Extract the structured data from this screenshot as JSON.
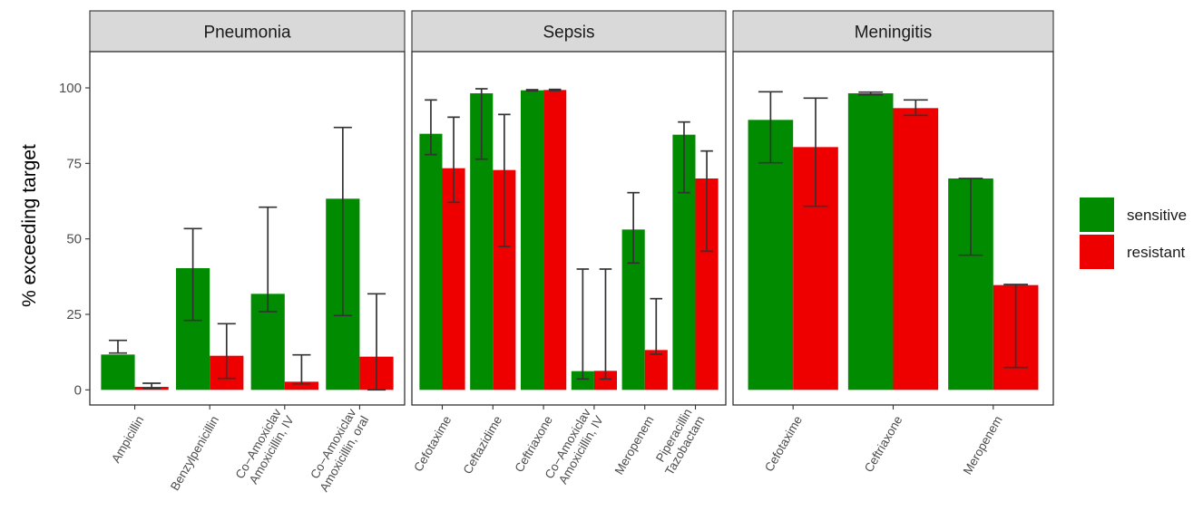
{
  "chart_data": {
    "type": "bar",
    "ylabel": "% exceeding target",
    "ylim": [
      -5,
      112
    ],
    "yticks": [
      0,
      25,
      50,
      75,
      100
    ],
    "legend": {
      "position": "right",
      "entries": [
        {
          "key": "sensitive",
          "label": "sensitive",
          "color": "#008B00"
        },
        {
          "key": "resistant",
          "label": "resistant",
          "color": "#EE0000"
        }
      ]
    },
    "panels": [
      {
        "title": "Pneumonia",
        "categories": [
          {
            "label": [
              "Ampicillin"
            ],
            "sensitive": {
              "value": 11.7,
              "lo": 12.2,
              "hi": 16.4
            },
            "resistant": {
              "value": 1.0,
              "lo": 0.5,
              "hi": 2.2
            }
          },
          {
            "label": [
              "Benzylpenicillin"
            ],
            "sensitive": {
              "value": 40.3,
              "lo": 23.0,
              "hi": 53.4
            },
            "resistant": {
              "value": 11.3,
              "lo": 3.8,
              "hi": 21.9
            }
          },
          {
            "label": [
              "Co−Amoxiclav",
              "Amoxicillin, IV"
            ],
            "sensitive": {
              "value": 31.8,
              "lo": 25.9,
              "hi": 60.5
            },
            "resistant": {
              "value": 2.7,
              "lo": 2.0,
              "hi": 11.6
            }
          },
          {
            "label": [
              "Co−Amoxiclav",
              "Amoxicillin, oral"
            ],
            "sensitive": {
              "value": 63.3,
              "lo": 24.6,
              "hi": 86.9
            },
            "resistant": {
              "value": 11.0,
              "lo": 0.0,
              "hi": 31.8
            }
          }
        ]
      },
      {
        "title": "Sepsis",
        "categories": [
          {
            "label": [
              "Cefotaxime"
            ],
            "sensitive": {
              "value": 84.8,
              "lo": 77.9,
              "hi": 96.0
            },
            "resistant": {
              "value": 73.4,
              "lo": 62.1,
              "hi": 90.3
            }
          },
          {
            "label": [
              "Ceftazidime"
            ],
            "sensitive": {
              "value": 98.2,
              "lo": 76.4,
              "hi": 99.7
            },
            "resistant": {
              "value": 72.8,
              "lo": 47.5,
              "hi": 91.2
            }
          },
          {
            "label": [
              "Ceftriaxone"
            ],
            "sensitive": {
              "value": 99.2,
              "lo": 99.0,
              "hi": 99.4
            },
            "resistant": {
              "value": 99.3,
              "lo": 99.1,
              "hi": 99.5
            }
          },
          {
            "label": [
              "Co−Amoxiclav",
              "Amoxicillin, IV"
            ],
            "sensitive": {
              "value": 6.2,
              "lo": 3.6,
              "hi": 40.0
            },
            "resistant": {
              "value": 6.3,
              "lo": 3.6,
              "hi": 40.0
            }
          },
          {
            "label": [
              "Meropenem"
            ],
            "sensitive": {
              "value": 53.1,
              "lo": 42.0,
              "hi": 65.3
            },
            "resistant": {
              "value": 13.2,
              "lo": 11.8,
              "hi": 30.2
            }
          },
          {
            "label": [
              "Piperacillin",
              "Tazobactam"
            ],
            "sensitive": {
              "value": 84.5,
              "lo": 65.3,
              "hi": 88.7
            },
            "resistant": {
              "value": 70.0,
              "lo": 45.9,
              "hi": 79.1
            }
          }
        ]
      },
      {
        "title": "Meningitis",
        "categories": [
          {
            "label": [
              "Cefotaxime"
            ],
            "sensitive": {
              "value": 89.4,
              "lo": 75.2,
              "hi": 98.7
            },
            "resistant": {
              "value": 80.4,
              "lo": 60.8,
              "hi": 96.6
            }
          },
          {
            "label": [
              "Ceftriaxone"
            ],
            "sensitive": {
              "value": 98.2,
              "lo": 97.7,
              "hi": 98.6
            },
            "resistant": {
              "value": 93.3,
              "lo": 90.9,
              "hi": 96.0
            }
          },
          {
            "label": [
              "Meropenem"
            ],
            "sensitive": {
              "value": 70.0,
              "lo": 44.6,
              "hi": 70.0
            },
            "resistant": {
              "value": 34.7,
              "lo": 7.4,
              "hi": 34.9
            }
          }
        ]
      }
    ]
  }
}
